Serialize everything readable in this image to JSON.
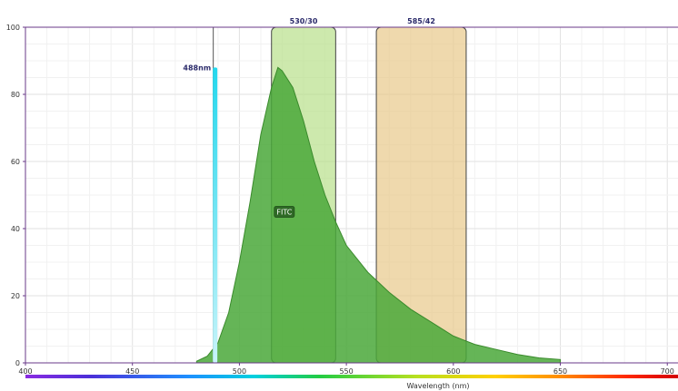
{
  "chart_data": {
    "type": "area",
    "xlabel": "Wavelength (nm)",
    "ylabel": "",
    "xlim": [
      400,
      705
    ],
    "ylim": [
      0,
      100
    ],
    "x_ticks": [
      400,
      450,
      500,
      550,
      600,
      650,
      700
    ],
    "y_ticks": [
      0,
      20,
      40,
      60,
      80,
      100
    ],
    "grid": true,
    "laser": {
      "label": "488nm",
      "wavelength": 488,
      "intensity": 88,
      "color": "#33d6e8"
    },
    "filters": [
      {
        "label": "530/30",
        "start": 515,
        "end": 545,
        "color": "#b8e08a"
      },
      {
        "label": "585/42",
        "start": 564,
        "end": 606,
        "color": "#e8c98a"
      }
    ],
    "series": [
      {
        "name": "FITC",
        "color": "#4aa83a",
        "x": [
          480,
          485,
          490,
          495,
          500,
          505,
          510,
          515,
          518,
          520,
          525,
          530,
          535,
          540,
          545,
          550,
          560,
          570,
          580,
          590,
          600,
          610,
          620,
          630,
          640,
          650
        ],
        "values": [
          0.5,
          2,
          6,
          15,
          30,
          48,
          68,
          82,
          88,
          87,
          82,
          72,
          60,
          50,
          42,
          35,
          27,
          21,
          16,
          12,
          8,
          5.5,
          4,
          2.5,
          1.5,
          1
        ]
      }
    ]
  }
}
